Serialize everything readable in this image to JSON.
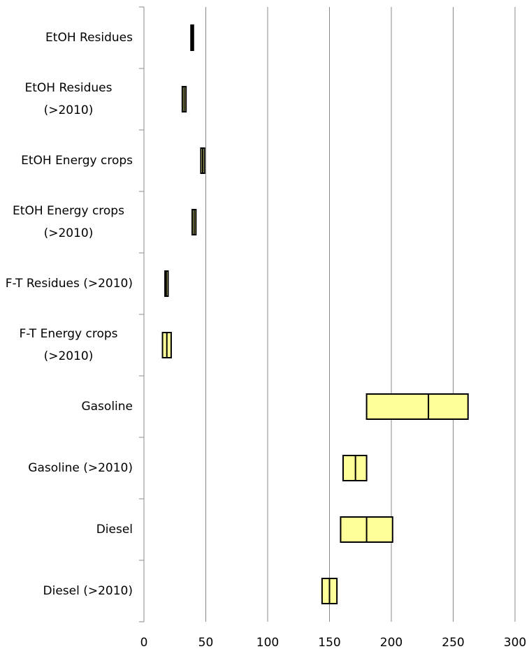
{
  "chart_data": {
    "type": "range",
    "categories": [
      "EtOH Residues",
      "EtOH Residues (>2010)",
      "EtOH Energy crops",
      "EtOH Energy crops (>2010)",
      "F-T Residues (>2010)",
      "F-T Energy crops (>2010)",
      "Gasoline",
      "Gasoline (>2010)",
      "Diesel",
      "Diesel (>2010)"
    ],
    "low": [
      38,
      31,
      46,
      39,
      17,
      15,
      180,
      161,
      159,
      144
    ],
    "mid": [
      39,
      32.5,
      47.5,
      40.5,
      18,
      18.5,
      230,
      171,
      180,
      150
    ],
    "high": [
      40,
      34,
      49,
      42,
      19.5,
      22,
      262,
      180,
      201,
      156
    ],
    "color": "#ffff99",
    "xlim": [
      0,
      300
    ],
    "xticks": [
      0,
      50,
      100,
      150,
      200,
      250,
      300
    ],
    "grid": true
  }
}
